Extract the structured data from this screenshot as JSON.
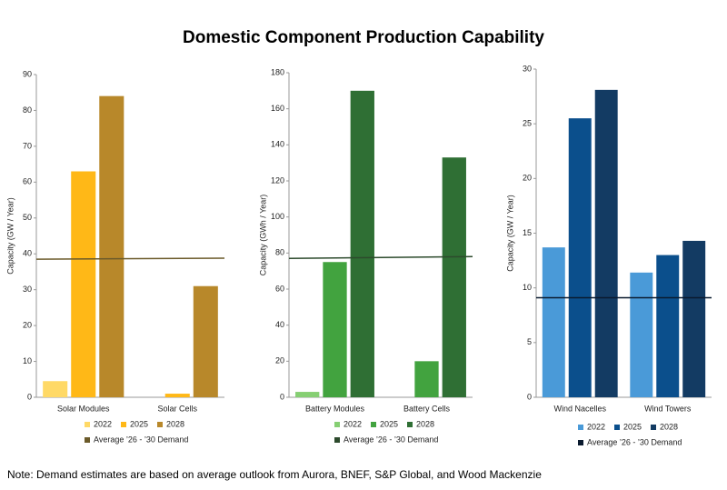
{
  "title": "Domestic Component Production Capability",
  "chart_data": [
    {
      "type": "bar",
      "y_label": "Capacity (GW / Year)",
      "categories": [
        "Solar Modules",
        "Solar Cells"
      ],
      "series": [
        {
          "name": "2022",
          "color": "#ffd966",
          "values": [
            4.5,
            null
          ]
        },
        {
          "name": "2025",
          "color": "#ffb817",
          "values": [
            63,
            1
          ]
        },
        {
          "name": "2028",
          "color": "#b8882a",
          "values": [
            84,
            31
          ]
        }
      ],
      "demand": {
        "name": "Average ’26 - ’30 Demand",
        "color": "#6b5a2a",
        "values": [
          38.5,
          38.8
        ]
      },
      "ylim": [
        0,
        90
      ],
      "yticks": [
        0,
        10,
        20,
        30,
        40,
        50,
        60,
        70,
        80,
        90
      ]
    },
    {
      "type": "bar",
      "y_label": "Capacity (GWh / Year)",
      "categories": [
        "Battery Modules",
        "Battery Cells"
      ],
      "series": [
        {
          "name": "2022",
          "color": "#86cf73",
          "values": [
            3,
            null
          ]
        },
        {
          "name": "2025",
          "color": "#42a33f",
          "values": [
            75,
            20
          ]
        },
        {
          "name": "2028",
          "color": "#2f6f34",
          "values": [
            170,
            133
          ]
        }
      ],
      "demand": {
        "name": "Average ’26 - ’30 Demand",
        "color": "#2c4a2c",
        "values": [
          77,
          78
        ]
      },
      "ylim": [
        0,
        180
      ],
      "yticks": [
        0,
        20,
        40,
        60,
        80,
        100,
        120,
        140,
        160,
        180
      ]
    },
    {
      "type": "bar",
      "y_label": "Capacity (GW / Year)",
      "categories": [
        "Wind Nacelles",
        "Wind Towers"
      ],
      "series": [
        {
          "name": "2022",
          "color": "#4a9ad8",
          "values": [
            13.7,
            11.4
          ]
        },
        {
          "name": "2025",
          "color": "#0b4f8c",
          "values": [
            25.5,
            13.0
          ]
        },
        {
          "name": "2028",
          "color": "#133b63",
          "values": [
            28.1,
            14.3
          ]
        }
      ],
      "demand": {
        "name": "Average ’26 - ’30 Demand",
        "color": "#0a1a2e",
        "values": [
          9.1,
          9.1
        ]
      },
      "ylim": [
        0,
        30
      ],
      "yticks": [
        0,
        5,
        10,
        15,
        20,
        25,
        30
      ]
    }
  ],
  "note": "Note: Demand estimates are based on average outlook from Aurora, BNEF, S&P Global, and Wood Mackenzie"
}
